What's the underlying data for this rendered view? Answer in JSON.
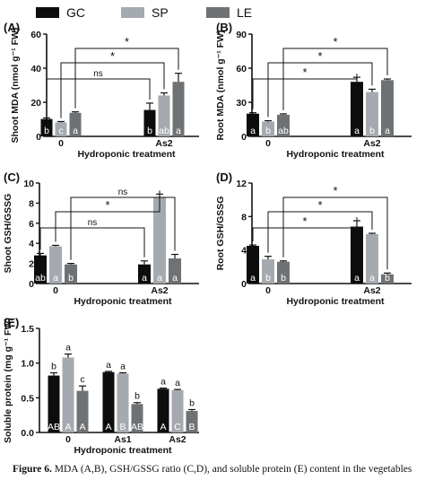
{
  "legend": [
    {
      "name": "GC",
      "color": "#0d0d0d"
    },
    {
      "name": "SP",
      "color": "#a5aab0"
    },
    {
      "name": "LE",
      "color": "#6f7275"
    }
  ],
  "caption": {
    "label": "Figure 6.",
    "text": "MDA (A,B), GSH/GSSG ratio (C,D), and soluble protein (E) content in the vegetables"
  },
  "chart_data": [
    {
      "type": "bar",
      "panel_label": "(A)",
      "xlabel": "Hydroponic treatment",
      "ylabel": "Shoot MDA (nmol g⁻¹ FW)",
      "categories": [
        "0",
        "As2"
      ],
      "ylim": [
        0,
        60
      ],
      "yticks": [
        0,
        20,
        40,
        60
      ],
      "series": [
        {
          "name": "GC",
          "values": [
            10.2,
            15.5
          ],
          "errors": [
            0.6,
            4.0
          ],
          "letters": [
            "b",
            "b"
          ]
        },
        {
          "name": "SP",
          "values": [
            8.2,
            24.0
          ],
          "errors": [
            0.5,
            1.5
          ],
          "letters": [
            "c",
            "ab"
          ]
        },
        {
          "name": "LE",
          "values": [
            13.8,
            32.0
          ],
          "errors": [
            0.6,
            5.0
          ],
          "letters": [
            "a",
            "a"
          ]
        }
      ],
      "comparisons": [
        {
          "series": "GC",
          "label": "ns"
        },
        {
          "series": "SP",
          "label": "*"
        },
        {
          "series": "LE",
          "label": "*"
        }
      ]
    },
    {
      "type": "bar",
      "panel_label": "(B)",
      "xlabel": "Hydroponic treatment",
      "ylabel": "Root MDA (nmol g⁻¹ FW)",
      "categories": [
        "0",
        "As2"
      ],
      "ylim": [
        0,
        90
      ],
      "yticks": [
        0,
        30,
        60,
        90
      ],
      "series": [
        {
          "name": "GC",
          "values": [
            20.0,
            48.0
          ],
          "errors": [
            0.8,
            4.0
          ],
          "letters": [
            "a",
            "a"
          ]
        },
        {
          "name": "SP",
          "values": [
            13.0,
            39.0
          ],
          "errors": [
            0.8,
            2.5
          ],
          "letters": [
            "b",
            "b"
          ]
        },
        {
          "name": "LE",
          "values": [
            19.0,
            49.5
          ],
          "errors": [
            0.8,
            1.0
          ],
          "letters": [
            "ab",
            "a"
          ]
        }
      ],
      "comparisons": [
        {
          "series": "GC",
          "label": "*"
        },
        {
          "series": "SP",
          "label": "*"
        },
        {
          "series": "LE",
          "label": "*"
        }
      ]
    },
    {
      "type": "bar",
      "panel_label": "(C)",
      "xlabel": "Hydroponic treatment",
      "ylabel": "Shoot GSH/GSSG",
      "categories": [
        "0",
        "As2"
      ],
      "ylim": [
        0,
        10
      ],
      "yticks": [
        0,
        2,
        4,
        6,
        8,
        10
      ],
      "series": [
        {
          "name": "GC",
          "values": [
            2.8,
            1.9
          ],
          "errors": [
            0.2,
            0.35
          ],
          "letters": [
            "ab",
            "a"
          ]
        },
        {
          "name": "SP",
          "values": [
            3.7,
            8.6
          ],
          "errors": [
            0.1,
            0.3
          ],
          "letters": [
            "a",
            "a"
          ]
        },
        {
          "name": "LE",
          "values": [
            1.9,
            2.5
          ],
          "errors": [
            0.1,
            0.4
          ],
          "letters": [
            "b",
            "a"
          ]
        }
      ],
      "comparisons": [
        {
          "series": "GC",
          "label": "ns"
        },
        {
          "series": "SP",
          "label": "*"
        },
        {
          "series": "LE",
          "label": "ns"
        }
      ]
    },
    {
      "type": "bar",
      "panel_label": "(D)",
      "xlabel": "Hydroponic treatment",
      "ylabel": "Root GSH/GSSG",
      "categories": [
        "0",
        "As2"
      ],
      "ylim": [
        0,
        12
      ],
      "yticks": [
        0,
        4,
        8,
        12
      ],
      "series": [
        {
          "name": "GC",
          "values": [
            4.5,
            6.8
          ],
          "errors": [
            0.1,
            0.7
          ],
          "letters": [
            "a",
            "a"
          ]
        },
        {
          "name": "SP",
          "values": [
            2.9,
            5.9
          ],
          "errors": [
            0.35,
            0.1
          ],
          "letters": [
            "b",
            "a"
          ]
        },
        {
          "name": "LE",
          "values": [
            2.6,
            1.1
          ],
          "errors": [
            0.1,
            0.15
          ],
          "letters": [
            "b",
            "b"
          ]
        }
      ],
      "comparisons": [
        {
          "series": "GC",
          "label": "*"
        },
        {
          "series": "SP",
          "label": "*"
        },
        {
          "series": "LE",
          "label": "*"
        }
      ]
    },
    {
      "type": "bar",
      "panel_label": "(E)",
      "xlabel": "Hydroponic treatment",
      "ylabel": "Soluble protein (mg g⁻¹ FW)",
      "categories": [
        "0",
        "As1",
        "As2"
      ],
      "ylim": [
        0,
        1.5
      ],
      "yticks": [
        0.0,
        0.5,
        1.0,
        1.5
      ],
      "series": [
        {
          "name": "GC",
          "values": [
            0.82,
            0.87,
            0.63
          ],
          "errors": [
            0.04,
            0.01,
            0.01
          ],
          "letters": [
            "AB",
            "A",
            "A"
          ],
          "top_letters": [
            "b",
            "a",
            "a"
          ]
        },
        {
          "name": "SP",
          "values": [
            1.08,
            0.85,
            0.61
          ],
          "errors": [
            0.05,
            0.01,
            0.01
          ],
          "letters": [
            "A",
            "B",
            "C"
          ],
          "top_letters": [
            "a",
            "a",
            "a"
          ]
        },
        {
          "name": "LE",
          "values": [
            0.6,
            0.41,
            0.31
          ],
          "errors": [
            0.07,
            0.02,
            0.02
          ],
          "letters": [
            "A",
            "AB",
            "B"
          ],
          "top_letters": [
            "c",
            "b",
            "b"
          ]
        }
      ]
    }
  ]
}
